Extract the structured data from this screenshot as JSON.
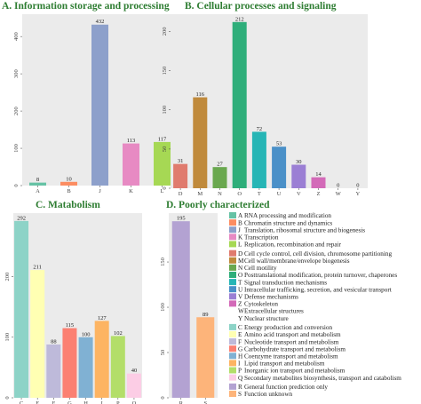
{
  "chart_data": [
    {
      "type": "bar",
      "title": "A. Information storage and processing",
      "categories": [
        "A",
        "B",
        "J",
        "K",
        "L"
      ],
      "values": [
        8,
        10,
        432,
        113,
        117
      ],
      "colors": [
        "#66c2a5",
        "#fc8d62",
        "#8da0cb",
        "#e78ac3",
        "#a6d854"
      ],
      "yticks": [
        0,
        100,
        200,
        300,
        400
      ],
      "ylim": [
        0,
        460
      ],
      "grid": false
    },
    {
      "type": "bar",
      "title": "B. Cellular processes and signaling",
      "categories": [
        "D",
        "M",
        "N",
        "O",
        "T",
        "U",
        "V",
        "Z",
        "W",
        "Y"
      ],
      "values": [
        31,
        116,
        27,
        212,
        72,
        53,
        30,
        14,
        0,
        0
      ],
      "colors": [
        "#e07b6e",
        "#c08a3c",
        "#6aa84f",
        "#2eae7a",
        "#26b5b5",
        "#4a90c8",
        "#9b7fd4",
        "#d36ab8",
        "#888888",
        "#888888"
      ],
      "yticks": [
        0,
        50,
        100,
        150,
        200
      ],
      "ylim": [
        0,
        222
      ],
      "grid": false
    },
    {
      "type": "bar",
      "title": "C. Matabolism",
      "categories": [
        "C",
        "E",
        "F",
        "G",
        "H",
        "I",
        "P",
        "Q"
      ],
      "values": [
        292,
        211,
        88,
        115,
        100,
        127,
        102,
        40
      ],
      "colors": [
        "#8dd3c7",
        "#ffffb3",
        "#bebada",
        "#fb8072",
        "#80b1d3",
        "#fdb462",
        "#b3de69",
        "#fccde5"
      ],
      "yticks": [
        0,
        100,
        200
      ],
      "ylim": [
        0,
        305
      ],
      "grid": false
    },
    {
      "type": "bar",
      "title": "D. Poorly characterized",
      "categories": [
        "R",
        "S"
      ],
      "values": [
        195,
        89
      ],
      "colors": [
        "#b3a2d2",
        "#fdb47a"
      ],
      "yticks": [
        0,
        50,
        100,
        150
      ],
      "ylim": [
        0,
        204
      ],
      "grid": false
    }
  ],
  "legend": {
    "placement": "right",
    "groups": [
      {
        "items": [
          {
            "code": "A",
            "label": "RNA processing and modification",
            "color": "#66c2a5"
          },
          {
            "code": "B",
            "label": "Chromatin structure and dynamics",
            "color": "#fc8d62"
          },
          {
            "code": "J",
            "label": "Translation, ribosomal structure and biogenesis",
            "color": "#8da0cb"
          },
          {
            "code": "K",
            "label": "Transcription",
            "color": "#e78ac3"
          },
          {
            "code": "L",
            "label": "Replication, recombination and repair",
            "color": "#a6d854"
          }
        ]
      },
      {
        "items": [
          {
            "code": "D",
            "label": "Cell cycle control, cell division, chromosome partitioning",
            "color": "#e07b6e"
          },
          {
            "code": "M",
            "label": "Cell wall/membrane/envelope biogenesis",
            "color": "#c08a3c"
          },
          {
            "code": "N",
            "label": "Cell motility",
            "color": "#6aa84f"
          },
          {
            "code": "O",
            "label": "Posttranslational modification, protein turnover, chaperones",
            "color": "#2eae7a"
          },
          {
            "code": "T",
            "label": "Signal transduction mechanisms",
            "color": "#26b5b5"
          },
          {
            "code": "U",
            "label": "Intracellular trafficking, secretion, and vesicular transport",
            "color": "#4a90c8"
          },
          {
            "code": "V",
            "label": "Defense mechanisms",
            "color": "#9b7fd4"
          },
          {
            "code": "Z",
            "label": "Cytoskeleton",
            "color": "#d36ab8"
          },
          {
            "code": "W",
            "label": "Extracellular structures",
            "color": ""
          },
          {
            "code": "Y",
            "label": "Nuclear structure",
            "color": ""
          }
        ]
      },
      {
        "items": [
          {
            "code": "C",
            "label": "Energy production and conversion",
            "color": "#8dd3c7"
          },
          {
            "code": "E",
            "label": "Amino acid transport and metabolism",
            "color": "#ffffb3"
          },
          {
            "code": "F",
            "label": "Nucleotide transport and metabolism",
            "color": "#bebada"
          },
          {
            "code": "G",
            "label": "Carbohydrate transport and metabolism",
            "color": "#fb8072"
          },
          {
            "code": "H",
            "label": "Coenzyme transport and metabolism",
            "color": "#80b1d3"
          },
          {
            "code": "I",
            "label": "Lipid transport and metabolism",
            "color": "#fdb462"
          },
          {
            "code": "P",
            "label": "Inorganic ion transport and metabolism",
            "color": "#b3de69"
          },
          {
            "code": "Q",
            "label": "Secondary metabolites biosynthesis, transport and catabolism",
            "color": "#fccde5"
          }
        ]
      },
      {
        "items": [
          {
            "code": "R",
            "label": "General function prediction only",
            "color": "#b3a2d2"
          },
          {
            "code": "S",
            "label": "Function unknown",
            "color": "#fdb47a"
          }
        ]
      }
    ]
  }
}
